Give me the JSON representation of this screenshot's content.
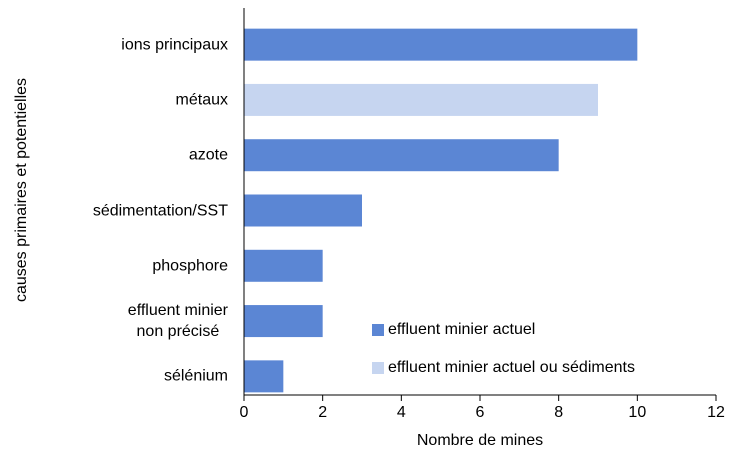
{
  "chart_data": {
    "type": "hbar",
    "x_label": "Nombre de mines",
    "y_label": "causes primaires et potentielles",
    "categories": [
      "ions principaux",
      "métaux",
      "azote",
      "sédimentation/SST",
      "phosphore",
      "effluent minier\nnon précisé",
      "sélénium"
    ],
    "series": [
      {
        "name": "effluent minier actuel",
        "color": "#5b86d4",
        "values": [
          10,
          null,
          8,
          3,
          2,
          2,
          1
        ]
      },
      {
        "name": "effluent minier actuel ou sédiments",
        "color": "#c6d5f0",
        "values": [
          null,
          9,
          null,
          null,
          null,
          null,
          null
        ]
      }
    ],
    "xlim": [
      0,
      12
    ],
    "xticks": [
      0,
      2,
      4,
      6,
      8,
      10,
      12
    ],
    "legend": "lower right"
  }
}
